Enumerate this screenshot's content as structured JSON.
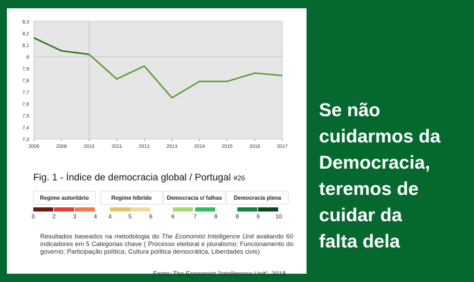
{
  "chart_data": {
    "type": "line",
    "x": [
      "2006",
      "2008",
      "2010",
      "2011",
      "2012",
      "2013",
      "2014",
      "2015",
      "2016",
      "2017"
    ],
    "values": [
      8.16,
      8.05,
      8.02,
      7.81,
      7.92,
      7.65,
      7.79,
      7.79,
      7.86,
      7.84
    ],
    "ylim": [
      7.3,
      8.3
    ],
    "yticks": [
      "7,3",
      "7,4",
      "7,5",
      "7,6",
      "7,7",
      "7,8",
      "7,9",
      "8",
      "8,1",
      "8,2",
      "8,3"
    ],
    "grid": false,
    "colors": {
      "early": "#1e6e10",
      "late": "#4f9a30",
      "plot_bg": "#e6e6e6"
    }
  },
  "figure": {
    "title": "Fig. 1 - Índice de democracia global / Portugal",
    "rank": "#26"
  },
  "legend": {
    "categories": [
      "Regime autoritário",
      "Regime híbrido",
      "Democracia c/ falhas",
      "Democracia plena"
    ],
    "colors": [
      "#6e1a12",
      "#ea3d35",
      "#f57a45",
      "#e9c25f",
      "#f2dc95",
      "#a6dd70",
      "#2fbd62",
      "#0a8a38",
      "#0b4a1f"
    ],
    "scale": [
      "0",
      "2",
      "3",
      "4",
      "4",
      "5",
      "6",
      "6",
      "7",
      "8",
      "8",
      "9",
      "10"
    ]
  },
  "note": {
    "prefix": "Resultados baseados na metodologia do ",
    "italic": "The  Economist Intelligence Unit",
    "suffix": " avaliando 60 indicadores em 5 Categorias chave ( Processo eleitoral e pluralismo; Funcionamento do governo; Participação política, Cultura política democrática, Liberdades civis)"
  },
  "source": "Fonte: The Economist \"Intelligence Unit\", 2018",
  "quote": [
    "Se não",
    "cuidarmos da",
    "Democracia,",
    "teremos de",
    "cuidar da",
    "falta dela"
  ]
}
